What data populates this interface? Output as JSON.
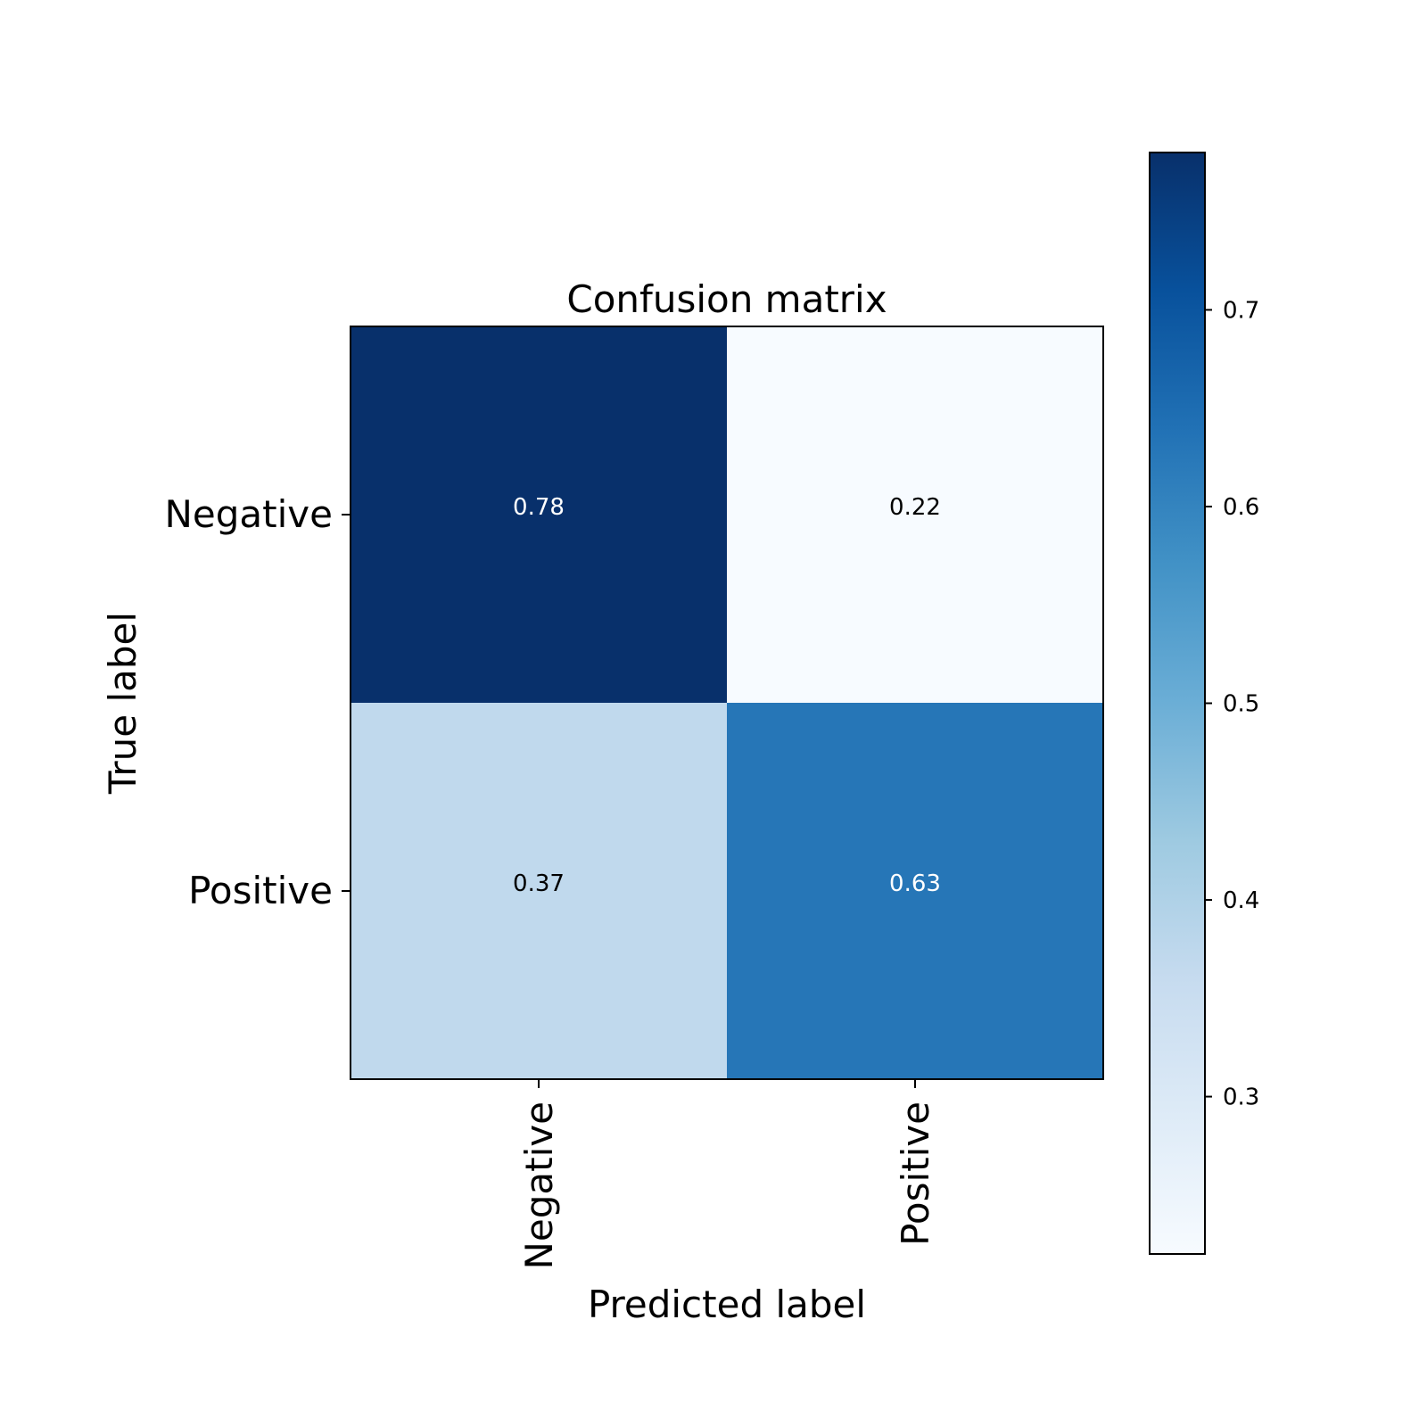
{
  "chart_data": {
    "type": "heatmap",
    "title": "Confusion matrix",
    "xlabel": "Predicted label",
    "ylabel": "True label",
    "x_categories": [
      "Negative",
      "Positive"
    ],
    "y_categories": [
      "Negative",
      "Positive"
    ],
    "values": [
      [
        0.78,
        0.22
      ],
      [
        0.37,
        0.63
      ]
    ],
    "cell_labels": [
      [
        "0.78",
        "0.22"
      ],
      [
        "0.37",
        "0.63"
      ]
    ],
    "colormap": "Blues",
    "colorbar": {
      "range": [
        0.22,
        0.78
      ],
      "ticks": [
        0.3,
        0.4,
        0.5,
        0.6,
        0.7
      ],
      "tick_labels": [
        "0.3",
        "0.4",
        "0.5",
        "0.6",
        "0.7"
      ]
    },
    "grid": false
  }
}
